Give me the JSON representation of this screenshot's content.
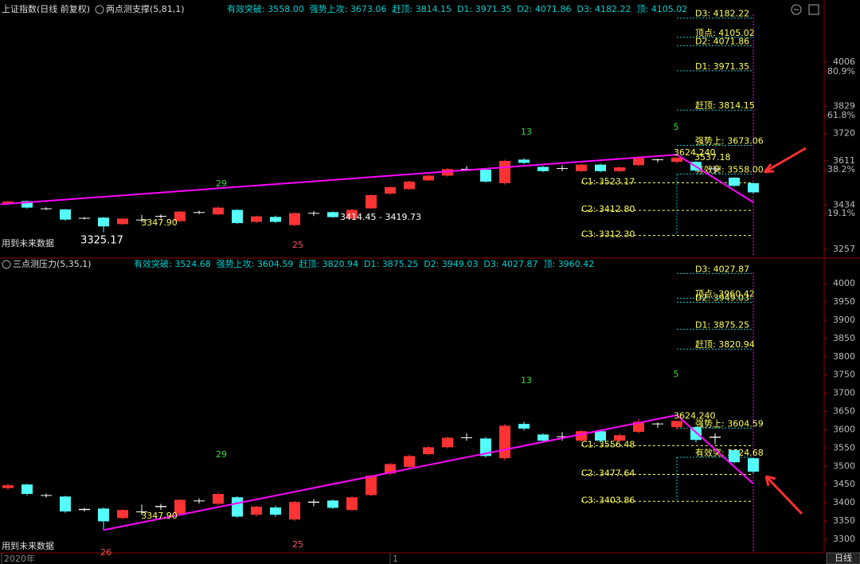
{
  "chart_data": [
    {
      "type": "candlestick",
      "title": "上证指数(日线 前复权)",
      "indicator": "两点测支撑(5,81,1)",
      "indicator_values": "有效突破: 3558.00  强势上攻: 3673.06  赶顶: 3814.15  D1: 3971.35  D2: 4071.86  D3: 4182.22  顶: 4105.02",
      "open": [
        3440,
        3450,
        3421,
        3417,
        3380,
        3384,
        3358,
        3374,
        3388,
        3370,
        3404,
        3397,
        3415,
        3367,
        3387,
        3354,
        3400,
        3406,
        3380,
        3421,
        3480,
        3498,
        3533,
        3552,
        3577,
        3576,
        3522,
        3616,
        3587,
        3582,
        3570,
        3596,
        3570,
        3594,
        3617,
        3607,
        3607,
        3578,
        3544,
        3522
      ],
      "high": [
        3452,
        3452,
        3425,
        3419,
        3386,
        3387,
        3383,
        3395,
        3397,
        3410,
        3412,
        3428,
        3418,
        3392,
        3392,
        3405,
        3410,
        3409,
        3418,
        3477,
        3509,
        3532,
        3556,
        3582,
        3590,
        3580,
        3616,
        3622,
        3590,
        3594,
        3600,
        3600,
        3590,
        3630,
        3620,
        3624.24,
        3610,
        3590,
        3546,
        3524
      ],
      "low": [
        3436,
        3420,
        3414,
        3372,
        3376,
        3325.17,
        3355,
        3366,
        3380,
        3366,
        3398,
        3394,
        3358,
        3362,
        3362,
        3350,
        3390,
        3383,
        3378,
        3418,
        3476,
        3495,
        3530,
        3548,
        3570,
        3524,
        3516,
        3598,
        3566,
        3570,
        3566,
        3565,
        3565,
        3590,
        3605,
        3600,
        3565,
        3560,
        3508,
        3480
      ],
      "close": [
        3448,
        3424,
        3419,
        3376,
        3383,
        3349,
        3380,
        3376,
        3391,
        3408,
        3406,
        3424,
        3362,
        3389,
        3367,
        3402,
        3403,
        3386,
        3415,
        3474,
        3506,
        3528,
        3552,
        3578,
        3579,
        3528,
        3611,
        3603,
        3570,
        3580,
        3596,
        3570,
        3585,
        3622,
        3615,
        3624,
        3572,
        3581,
        3511,
        3485
      ],
      "up_color": "#ff3333",
      "down_color": "#54fcfc",
      "flat_color": "#ffffff",
      "ylim": [
        3228.4,
        4197.2
      ],
      "yticks": [
        4006,
        3829,
        3720,
        3611,
        3434,
        3257
      ],
      "y2lim": [
        0.4,
        105.9
      ],
      "y2ticks": [
        {
          "value": 80.9,
          "label": "80.9%"
        },
        {
          "value": 61.8,
          "label": "61.8%"
        },
        {
          "value": 38.2,
          "label": "38.2%"
        },
        {
          "value": 19.1,
          "label": "19.1%"
        }
      ],
      "trend": {
        "x": [
          -0.4,
          35,
          39
        ],
        "values": [
          3437,
          3636,
          3445
        ],
        "color": "#ff00ff"
      },
      "pivot": {
        "value": 3624.24,
        "label": "3624.240"
      },
      "targets": [
        {
          "value": 4182.22,
          "label": "D3: 4182.22"
        },
        {
          "value": 4105.02,
          "label": "顶点: 4105.02"
        },
        {
          "value": 4071.86,
          "label": "D2: 4071.86"
        },
        {
          "value": 3971.35,
          "label": "D1: 3971.35"
        },
        {
          "value": 3814.15,
          "label": "赶顶: 3814.15"
        },
        {
          "value": 3673.06,
          "label": "强势上: 3673.06"
        },
        {
          "value": 3558,
          "label": "有效突: 3558.00"
        }
      ],
      "supports": [
        {
          "value": 3523.17,
          "label": "C1: 3523.17"
        },
        {
          "value": 3412.8,
          "label": "C2: 3412.80"
        },
        {
          "value": 3312.3,
          "label": "C3: 3312.30"
        }
      ],
      "annotations": [
        "29",
        "13",
        "5",
        "25",
        "3325.17",
        "3347.90",
        "3414.45 - 3419.73",
        "3537.18",
        "用到未来数据"
      ]
    },
    {
      "type": "candlestick",
      "indicator": "三点测压力(5,35,1)",
      "indicator_values": "有效突破: 3524.68  强势上攻: 3604.59  赶顶: 3820.94  D1: 3875.25  D2: 3949.03  D3: 4027.87  顶: 3960.42",
      "ylim": [
        3267,
        4031
      ],
      "yticks": [
        4000,
        3950,
        3900,
        3850,
        3800,
        3750,
        3700,
        3650,
        3600,
        3550,
        3500,
        3450,
        3400,
        3350,
        3300
      ],
      "trend": {
        "x": [
          5,
          35,
          39
        ],
        "values": [
          3325.17,
          3640,
          3452
        ],
        "color": "#ff00ff"
      },
      "pivot": {
        "value": 3624.24,
        "label": "3624.240"
      },
      "targets": [
        {
          "value": 4027.87,
          "label": "D3: 4027.87"
        },
        {
          "value": 3960.42,
          "label": "顶点: 3960.42"
        },
        {
          "value": 3949.03,
          "label": "D2: 3949.03"
        },
        {
          "value": 3875.25,
          "label": "D1: 3875.25"
        },
        {
          "value": 3820.94,
          "label": "赶顶: 3820.94"
        },
        {
          "value": 3604.59,
          "label": "强势上: 3604.59"
        },
        {
          "value": 3524.68,
          "label": "有效突: 3524.68"
        }
      ],
      "supports": [
        {
          "value": 3556.48,
          "label": "C1: 3556.48"
        },
        {
          "value": 3477.64,
          "label": "C2: 3477.64"
        },
        {
          "value": 3403.86,
          "label": "C3: 3403.86"
        }
      ],
      "annotations": [
        "29",
        "13",
        "5",
        "25",
        "3347.90",
        "26",
        "用到未来数据"
      ],
      "x_labels": [
        "2020年",
        "1"
      ],
      "period": "日线"
    }
  ]
}
